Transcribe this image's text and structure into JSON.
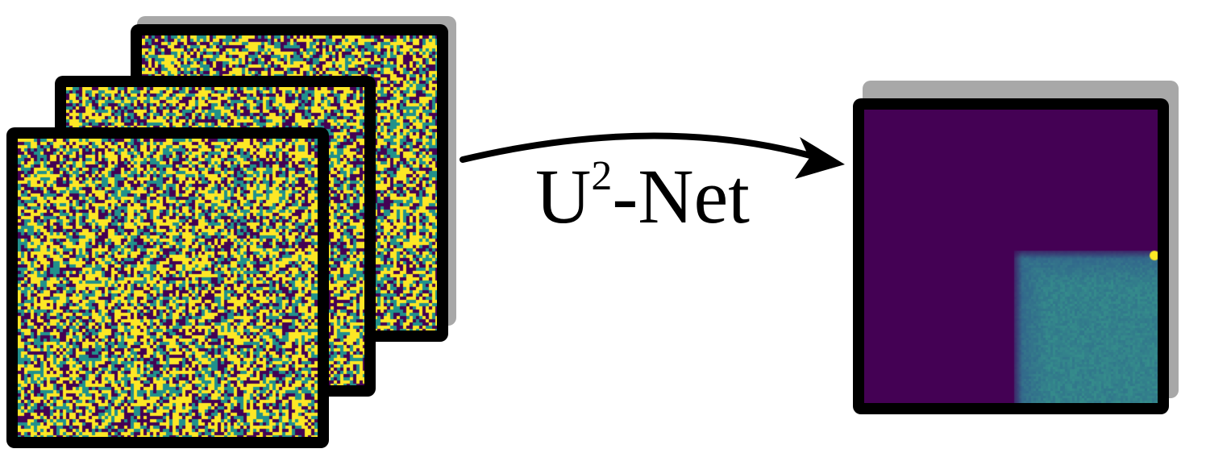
{
  "diagram": {
    "model_label": {
      "main": "U",
      "superscript": "2",
      "suffix": "-Net"
    },
    "colors": {
      "noise_dark": "#440154",
      "noise_mid": "#21918c",
      "noise_bright": "#fde725",
      "output_background": "#440154",
      "output_region": "#2f6b8e",
      "frame_border": "#000000",
      "shadow": "#a8a8a8",
      "arrow": "#000000"
    },
    "inputs": {
      "count": 3,
      "description_icon": "noise-image-stack"
    },
    "output": {
      "description_icon": "segmentation-mask-image"
    }
  }
}
